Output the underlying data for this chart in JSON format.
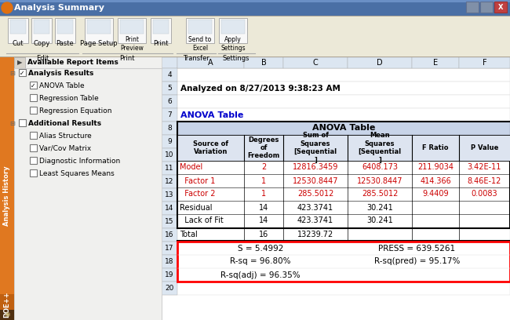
{
  "title_bar": "Analysis Summary",
  "sidebar_sections": [
    {
      "name": "Analysis Results",
      "indent": 0,
      "checked": true,
      "bold": true
    },
    {
      "name": "ANOVA Table",
      "indent": 1,
      "checked": true,
      "bold": false
    },
    {
      "name": "Regression Table",
      "indent": 1,
      "checked": false,
      "bold": false
    },
    {
      "name": "Regression Equation",
      "indent": 1,
      "checked": false,
      "bold": false
    },
    {
      "name": "Additional Results",
      "indent": 0,
      "checked": false,
      "bold": true
    },
    {
      "name": "Alias Structure",
      "indent": 1,
      "checked": false,
      "bold": false
    },
    {
      "name": "Var/Cov Matrix",
      "indent": 1,
      "checked": false,
      "bold": false
    },
    {
      "name": "Diagnostic Information",
      "indent": 1,
      "checked": false,
      "bold": false
    },
    {
      "name": "Least Squares Means",
      "indent": 1,
      "checked": false,
      "bold": false
    }
  ],
  "analyzed_text": "Analyzed on 8/27/2013 9:38:23 AM",
  "anova_label": "ANOVA Table",
  "anova_header": "ANOVA Table",
  "col_labels": [
    "A",
    "B",
    "C",
    "D",
    "E",
    "F"
  ],
  "row_numbers": [
    "4",
    "5",
    "6",
    "7",
    "8",
    "9",
    "10",
    "11",
    "12",
    "13",
    "14",
    "15",
    "16",
    "17",
    "18",
    "19",
    "20"
  ],
  "col_header_texts": [
    "Source of\nVariation",
    "Degrees\nof\nFreedom",
    "Sum of\nSquares\n[Sequential\n]",
    "Mean\nSquares\n[Sequential\n]",
    "F Ratio",
    "P Value"
  ],
  "data_rows": [
    {
      "row": "10",
      "source": "Model",
      "df": "2",
      "ss": "12816.3459",
      "ms": "6408.173",
      "f": "211.9034",
      "p": "3.42E-11",
      "color": "red"
    },
    {
      "row": "11",
      "source": "  Factor 1",
      "df": "1",
      "ss": "12530.8447",
      "ms": "12530.8447",
      "f": "414.366",
      "p": "8.46E-12",
      "color": "red"
    },
    {
      "row": "12",
      "source": "  Factor 2",
      "df": "1",
      "ss": "285.5012",
      "ms": "285.5012",
      "f": "9.4409",
      "p": "0.0083",
      "color": "red"
    },
    {
      "row": "13",
      "source": "Residual",
      "df": "14",
      "ss": "423.3741",
      "ms": "30.241",
      "f": "",
      "p": "",
      "color": "black"
    },
    {
      "row": "14",
      "source": "  Lack of Fit",
      "df": "14",
      "ss": "423.3741",
      "ms": "30.241",
      "f": "",
      "p": "",
      "color": "black"
    },
    {
      "row": "15",
      "source": "Total",
      "df": "16",
      "ss": "13239.72",
      "ms": "",
      "f": "",
      "p": "",
      "color": "black"
    }
  ],
  "stats_rows": [
    {
      "row": "17",
      "left": "S = 5.4992",
      "right": "PRESS = 639.5261"
    },
    {
      "row": "18",
      "left": "R-sq = 96.80%",
      "right": "R-sq(pred) = 95.17%"
    },
    {
      "row": "19",
      "left": "R-sq(adj) = 96.35%",
      "right": ""
    }
  ],
  "red_text": "#cc0000",
  "blue_text": "#0000cc",
  "titlebar_bg": "#4a6fa5",
  "toolbar_bg": "#ece9d8",
  "sheet_header_bg": "#dce6f1",
  "anova_hdr_bg": "#c8d4e8",
  "col9_bg": "#dde4f0",
  "sidebar_bg": "#f0f0ee",
  "orange_bar": "#e07820",
  "orange_doe": "#c06010"
}
